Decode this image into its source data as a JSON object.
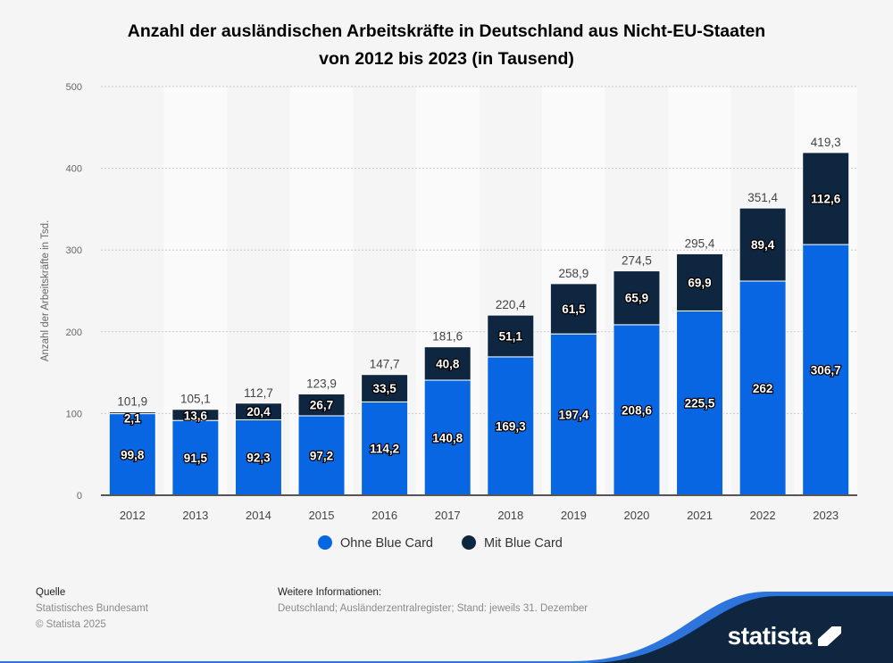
{
  "chart_data": {
    "type": "bar",
    "stacked": true,
    "title": "Anzahl der ausländischen Arbeitskräfte in Deutschland aus Nicht-EU-Staaten von 2012 bis 2023 (in Tausend)",
    "title_lines": [
      "Anzahl der ausländischen Arbeitskräfte in Deutschland aus Nicht-EU-Staaten",
      "von 2012 bis 2023 (in Tausend)"
    ],
    "xlabel": "",
    "ylabel": "Anzahl der Arbeitskräfte in Tsd.",
    "ylim": [
      0,
      500
    ],
    "yticks": [
      0,
      100,
      200,
      300,
      400,
      500
    ],
    "grid": true,
    "legend_position": "bottom",
    "categories": [
      "2012",
      "2013",
      "2014",
      "2015",
      "2016",
      "2017",
      "2018",
      "2019",
      "2020",
      "2021",
      "2022",
      "2023"
    ],
    "series": [
      {
        "name": "Ohne Blue Card",
        "color": "#0966e3",
        "values": [
          99.8,
          91.5,
          92.3,
          97.2,
          114.2,
          140.8,
          169.3,
          197.4,
          208.6,
          225.5,
          262,
          306.7
        ],
        "labels": [
          "99,8",
          "91,5",
          "92,3",
          "97,2",
          "114,2",
          "140,8",
          "169,3",
          "197,4",
          "208,6",
          "225,5",
          "262",
          "306,7"
        ]
      },
      {
        "name": "Mit Blue Card",
        "color": "#0f2640",
        "values": [
          2.1,
          13.6,
          20.4,
          26.7,
          33.5,
          40.8,
          51.1,
          61.5,
          65.9,
          69.9,
          89.4,
          112.6
        ],
        "labels": [
          "2,1",
          "13,6",
          "20,4",
          "26,7",
          "33,5",
          "40,8",
          "51,1",
          "61,5",
          "65,9",
          "69,9",
          "89,4",
          "112,6"
        ]
      }
    ],
    "totals": [
      "101,9",
      "105,1",
      "112,7",
      "123,9",
      "147,7",
      "181,6",
      "220,4",
      "258,9",
      "274,5",
      "295,4",
      "351,4",
      "419,3"
    ]
  },
  "footer": {
    "source_heading": "Quelle",
    "source_lines": [
      "Statistisches Bundesamt",
      "© Statista 2025"
    ],
    "info_heading": "Weitere Informationen:",
    "info_text": "Deutschland; Ausländerzentralregister; Stand: jeweils 31. Dezember",
    "logo": "statista"
  }
}
